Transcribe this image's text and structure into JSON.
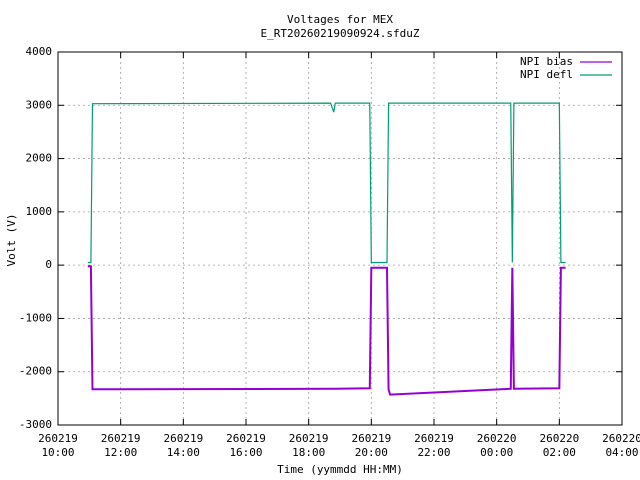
{
  "chart_data": {
    "type": "line",
    "title": "Voltages for MEX",
    "subtitle": "E_RT20260219090924.sfduZ",
    "x_label": "Time (yymmdd HH:MM)",
    "y_label": "Volt (V)",
    "x": [
      10.95,
      11.05,
      11.1,
      18.7,
      18.8,
      18.85,
      19.95,
      20.0,
      20.5,
      20.55,
      20.6,
      24.45,
      24.5,
      24.55,
      26.0,
      26.05,
      26.2
    ],
    "series": [
      {
        "name": "NPI bias",
        "color": "#9400d3",
        "values": [
          -20,
          -20,
          -2330,
          -2320,
          -2320,
          -2320,
          -2310,
          -50,
          -50,
          -2330,
          -2430,
          -2320,
          -50,
          -2320,
          -2310,
          -50,
          -50
        ]
      },
      {
        "name": "NPI defl",
        "color": "#009e73",
        "values": [
          50,
          50,
          3030,
          3040,
          2870,
          3040,
          3040,
          50,
          50,
          3040,
          3040,
          3040,
          50,
          3040,
          3040,
          50,
          50
        ]
      }
    ],
    "xlim": [
      10,
      28
    ],
    "xticks": [
      {
        "value": 10,
        "label": "260219 10:00"
      },
      {
        "value": 12,
        "label": "260219 12:00"
      },
      {
        "value": 14,
        "label": "260219 14:00"
      },
      {
        "value": 16,
        "label": "260219 16:00"
      },
      {
        "value": 18,
        "label": "260219 18:00"
      },
      {
        "value": 20,
        "label": "260219 20:00"
      },
      {
        "value": 22,
        "label": "260219 22:00"
      },
      {
        "value": 24,
        "label": "260220 00:00"
      },
      {
        "value": 26,
        "label": "260220 02:00"
      },
      {
        "value": 28,
        "label": "260220 04:00"
      }
    ],
    "ylim": [
      -3000,
      4000
    ],
    "yticks": [
      -3000,
      -2000,
      -1000,
      0,
      1000,
      2000,
      3000,
      4000
    ],
    "grid": true,
    "legend": "top-right"
  }
}
